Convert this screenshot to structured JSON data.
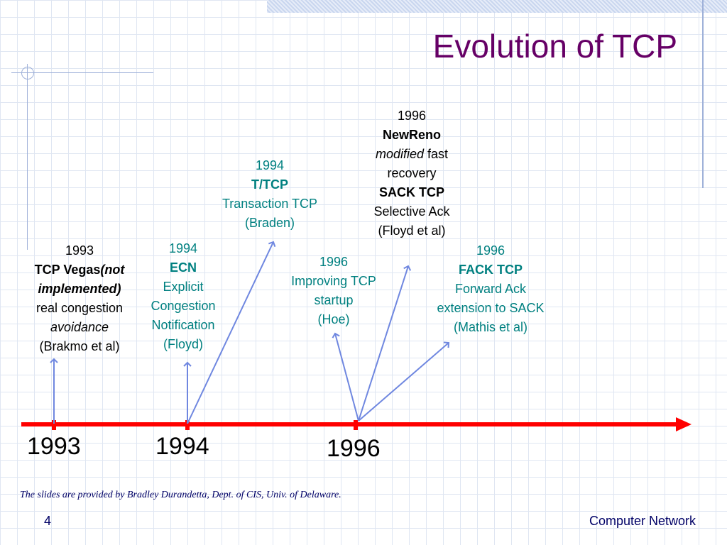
{
  "slide": {
    "title": "Evolution of TCP",
    "credit": "The slides are provided by Bradley Durandetta, Dept. of CIS, Univ. of Delaware.",
    "page_number": "4",
    "footer": "Computer Network"
  },
  "timeline": {
    "years": [
      "1993",
      "1994",
      "1996"
    ]
  },
  "events": {
    "vegas": {
      "year": "1993",
      "name": "TCP Vegas",
      "name_note": "(not implemented)",
      "desc_prefix": "real congestion",
      "desc_italic": "avoidance",
      "authors": "(Brakmo et al)"
    },
    "ecn": {
      "year": "1994",
      "name": "ECN",
      "desc1": "Explicit",
      "desc2": "Congestion",
      "desc3": "Notification",
      "authors": "(Floyd)"
    },
    "ttcp": {
      "year": "1994",
      "name": "T/TCP",
      "desc": "Transaction TCP",
      "authors": "(Braden)"
    },
    "hoe": {
      "year": "1996",
      "desc1": "Improving TCP",
      "desc2": "startup",
      "authors": "(Hoe)"
    },
    "newreno": {
      "year": "1996",
      "name": "NewReno",
      "desc_italic": "modified",
      "desc_rest": "fast",
      "desc2": "recovery",
      "name2": "SACK TCP",
      "desc3": "Selective Ack",
      "authors": "(Floyd et al)"
    },
    "fack": {
      "year": "1996",
      "name": "FACK TCP",
      "desc1": "Forward Ack",
      "desc2": "extension to SACK",
      "authors": "(Mathis et al)"
    }
  },
  "colors": {
    "title": "#660066",
    "timeline": "#ff0000",
    "arrows": "#6f87e0",
    "teal_text": "#008080"
  }
}
